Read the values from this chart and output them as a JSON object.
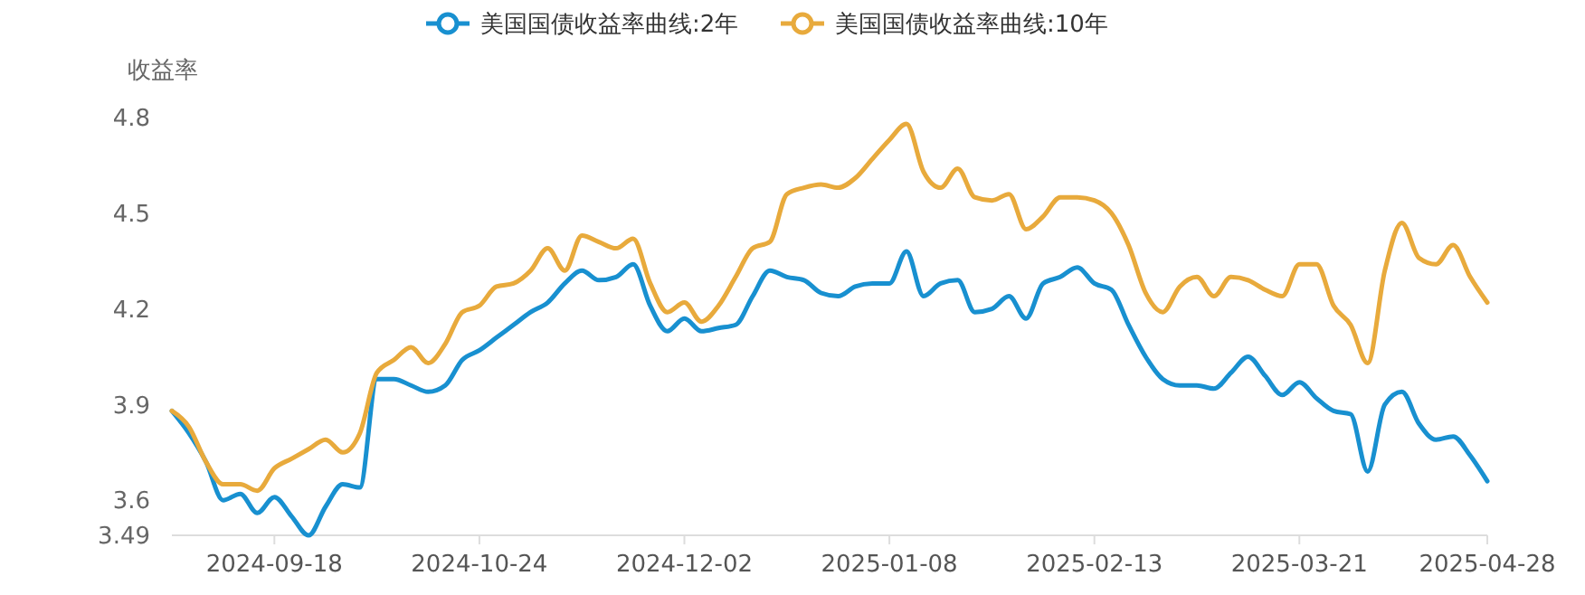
{
  "chart_data": {
    "type": "line",
    "ylabel": "收益率",
    "legend": "top",
    "marker": "none",
    "ylim": [
      3.49,
      4.8
    ],
    "yticks": [
      3.49,
      3.6,
      3.9,
      4.2,
      4.5,
      4.8
    ],
    "categories": [
      null,
      null,
      null,
      null,
      null,
      null,
      "2024-09-18",
      null,
      null,
      null,
      null,
      null,
      null,
      null,
      null,
      null,
      null,
      null,
      "2024-10-24",
      null,
      null,
      null,
      null,
      null,
      null,
      null,
      null,
      null,
      null,
      null,
      "2024-12-02",
      null,
      null,
      null,
      null,
      null,
      null,
      null,
      null,
      null,
      null,
      null,
      "2025-01-08",
      null,
      null,
      null,
      null,
      null,
      null,
      null,
      null,
      null,
      null,
      null,
      "2025-02-13",
      null,
      null,
      null,
      null,
      null,
      null,
      null,
      null,
      null,
      null,
      null,
      "2025-03-21",
      null,
      null,
      null,
      null,
      null,
      null,
      null,
      null,
      null,
      null,
      "2025-04-28"
    ],
    "series": [
      {
        "name": "美国国债收益率曲线:2年",
        "color": "#1890d0",
        "values": [
          3.88,
          3.81,
          3.72,
          3.6,
          3.62,
          3.56,
          3.61,
          3.55,
          3.49,
          3.58,
          3.65,
          3.64,
          3.98,
          3.98,
          3.96,
          3.94,
          3.96,
          4.04,
          4.07,
          4.11,
          4.15,
          4.19,
          4.22,
          4.28,
          4.32,
          4.29,
          4.3,
          4.34,
          4.21,
          4.13,
          4.17,
          4.13,
          4.14,
          4.15,
          4.24,
          4.32,
          4.3,
          4.29,
          4.25,
          4.24,
          4.27,
          4.28,
          4.28,
          4.38,
          4.24,
          4.28,
          4.29,
          4.19,
          4.2,
          4.24,
          4.17,
          4.28,
          4.3,
          4.33,
          4.28,
          4.26,
          4.15,
          4.05,
          3.98,
          3.96,
          3.96,
          3.95,
          4.0,
          4.05,
          3.99,
          3.93,
          3.97,
          3.92,
          3.88,
          3.87,
          3.69,
          3.9,
          3.94,
          3.84,
          3.79,
          3.8,
          3.74,
          3.66
        ]
      },
      {
        "name": "美国国债收益率曲线:10年",
        "color": "#e8aa3c",
        "values": [
          3.88,
          3.83,
          3.72,
          3.65,
          3.65,
          3.63,
          3.7,
          3.73,
          3.76,
          3.79,
          3.75,
          3.81,
          4.0,
          4.04,
          4.08,
          4.03,
          4.09,
          4.19,
          4.21,
          4.27,
          4.28,
          4.32,
          4.39,
          4.32,
          4.43,
          4.41,
          4.39,
          4.42,
          4.28,
          4.19,
          4.22,
          4.16,
          4.21,
          4.3,
          4.39,
          4.41,
          4.56,
          4.58,
          4.59,
          4.58,
          4.61,
          4.67,
          4.73,
          4.78,
          4.63,
          4.58,
          4.64,
          4.55,
          4.54,
          4.56,
          4.45,
          4.49,
          4.55,
          4.55,
          4.54,
          4.5,
          4.4,
          4.25,
          4.19,
          4.27,
          4.3,
          4.24,
          4.3,
          4.29,
          4.26,
          4.24,
          4.34,
          4.34,
          4.21,
          4.15,
          4.03,
          4.32,
          4.47,
          4.36,
          4.34,
          4.4,
          4.3,
          4.22
        ]
      }
    ]
  }
}
